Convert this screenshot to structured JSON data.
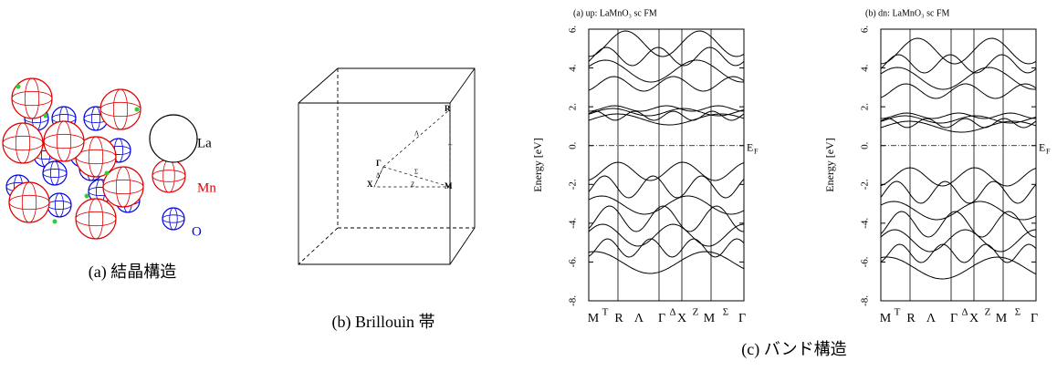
{
  "panel_a": {
    "legend": [
      {
        "label": "La"
      },
      {
        "label": "Mn"
      },
      {
        "label": "O"
      }
    ],
    "caption": "(a) 結晶構造"
  },
  "panel_b": {
    "points": [
      "Γ",
      "X",
      "M",
      "R"
    ],
    "lines": [
      "Λ",
      "Σ",
      "Δ",
      "Z",
      "T"
    ],
    "caption": "(b) Brillouin 帯"
  },
  "panel_c": {
    "caption": "(c) バンド構造",
    "ylabel": "Energy [eV]",
    "ylim": [
      -8,
      6
    ],
    "yticks": [
      {
        "value": -8,
        "label": "-8."
      },
      {
        "value": -6,
        "label": "-6."
      },
      {
        "value": -4,
        "label": "-4."
      },
      {
        "value": -2,
        "label": "-2."
      },
      {
        "value": 0,
        "label": "0."
      },
      {
        "value": 2,
        "label": "2."
      },
      {
        "value": 4,
        "label": "4."
      },
      {
        "value": 6,
        "label": "6."
      }
    ],
    "kpoints": [
      "M",
      "T",
      "R",
      "Λ",
      "Γ",
      "Δ",
      "X",
      "Z",
      "M",
      "Σ",
      "Γ"
    ],
    "fermi": {
      "main": "E",
      "sub": "F"
    },
    "plots": [
      {
        "title": "(a) up: LaMnO₃ sc FM"
      },
      {
        "title": "(b) dn: LaMnO₃ sc FM"
      }
    ]
  }
}
